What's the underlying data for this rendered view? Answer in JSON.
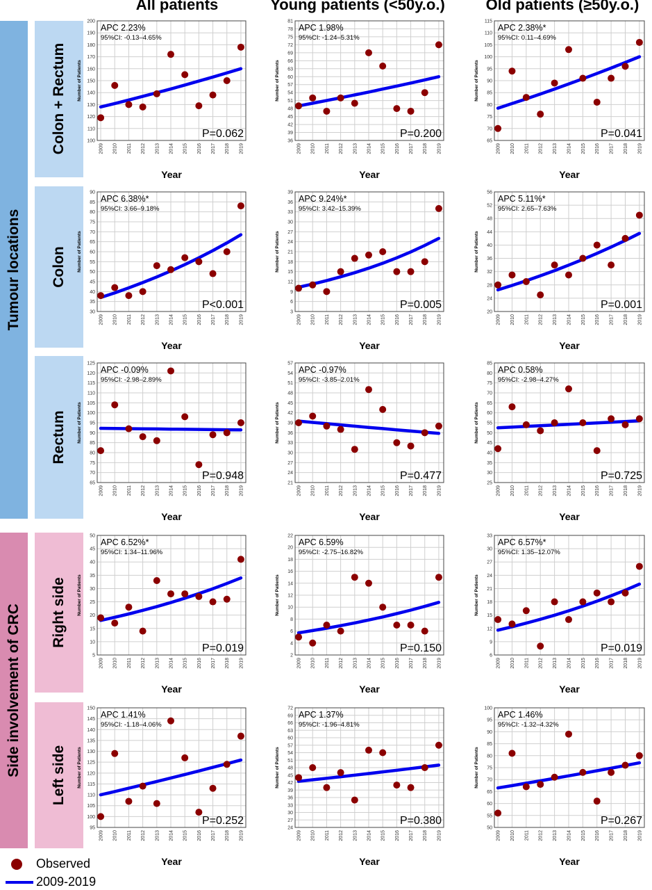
{
  "column_headers": [
    "All patients",
    "Young patients (<50y.o.)",
    "Old patients (≥50y.o.)"
  ],
  "group_labels": [
    "Tumour locations",
    "Side involvement of CRC"
  ],
  "row_labels": [
    "Colon + Rectum",
    "Colon",
    "Rectum",
    "Right side",
    "Left side"
  ],
  "axis_title_y": "Number of Patients",
  "axis_title_x": "Year",
  "legend": {
    "observed": "Observed",
    "fit": "2009-2019"
  },
  "colors": {
    "observed": "#8b0000",
    "fit": "#0000ee",
    "band_tumour": "#7fb3e0",
    "row_tumour": "#bcd8f2",
    "band_side": "#d98bb0",
    "row_side": "#efbcd4"
  },
  "chart_data": [
    {
      "type": "scatter",
      "row": "Colon + Rectum",
      "column": "All patients",
      "title": "",
      "xlabel": "Year",
      "ylabel": "Number of Patients",
      "x": [
        2009,
        2010,
        2011,
        2012,
        2013,
        2014,
        2015,
        2016,
        2017,
        2018,
        2019
      ],
      "observed": [
        119,
        146,
        130,
        128,
        139,
        172,
        155,
        129,
        138,
        150,
        178
      ],
      "fit": {
        "start": 128,
        "end": 160
      },
      "ylim": [
        100,
        200
      ],
      "yticks": [
        100,
        110,
        120,
        130,
        140,
        150,
        160,
        170,
        180,
        190,
        200
      ],
      "apc": "APC 2.23%",
      "ci": "95%CI: -0.13–4.65%",
      "p": "P=0.062"
    },
    {
      "type": "scatter",
      "row": "Colon + Rectum",
      "column": "Young patients (<50y.o.)",
      "title": "",
      "xlabel": "Year",
      "ylabel": "Number of Patients",
      "x": [
        2009,
        2010,
        2011,
        2012,
        2013,
        2014,
        2015,
        2016,
        2017,
        2018,
        2019
      ],
      "observed": [
        49,
        52,
        47,
        52,
        50,
        69,
        64,
        48,
        47,
        54,
        72
      ],
      "fit": {
        "start": 49,
        "end": 60
      },
      "ylim": [
        36,
        81
      ],
      "yticks": [
        36,
        39,
        42,
        45,
        48,
        51,
        54,
        57,
        60,
        63,
        66,
        69,
        72,
        75,
        78,
        81
      ],
      "apc": "APC 1.98%",
      "ci": "95%CI: -1.24–5.31%",
      "p": "P=0.200"
    },
    {
      "type": "scatter",
      "row": "Colon + Rectum",
      "column": "Old patients (≥50y.o.)",
      "title": "",
      "xlabel": "Year",
      "ylabel": "Number of Patients",
      "x": [
        2009,
        2010,
        2011,
        2012,
        2013,
        2014,
        2015,
        2016,
        2017,
        2018,
        2019
      ],
      "observed": [
        70,
        94,
        83,
        76,
        89,
        103,
        91,
        81,
        91,
        96,
        106
      ],
      "fit": {
        "start": 78.5,
        "end": 100
      },
      "ylim": [
        65,
        115
      ],
      "yticks": [
        65,
        70,
        75,
        80,
        85,
        90,
        95,
        100,
        105,
        110,
        115
      ],
      "apc": "APC 2.38%*",
      "ci": "95%CI: 0.11–4.69%",
      "p": "P=0.041"
    },
    {
      "type": "scatter",
      "row": "Colon",
      "column": "All patients",
      "title": "",
      "xlabel": "Year",
      "ylabel": "Number of Patients",
      "x": [
        2009,
        2010,
        2011,
        2012,
        2013,
        2014,
        2015,
        2016,
        2017,
        2018,
        2019
      ],
      "observed": [
        38,
        42,
        38,
        40,
        53,
        51,
        57,
        55,
        49,
        60,
        83
      ],
      "fit": {
        "start": 37,
        "end": 68.5
      },
      "ylim": [
        30,
        90
      ],
      "yticks": [
        30,
        35,
        40,
        45,
        50,
        55,
        60,
        65,
        70,
        75,
        80,
        85,
        90
      ],
      "apc": "APC 6.38%*",
      "ci": "95%CI: 3.66–9.18%",
      "p": "P<0.001"
    },
    {
      "type": "scatter",
      "row": "Colon",
      "column": "Young patients (<50y.o.)",
      "title": "",
      "xlabel": "Year",
      "ylabel": "Number of Patients",
      "x": [
        2009,
        2010,
        2011,
        2012,
        2013,
        2014,
        2015,
        2016,
        2017,
        2018,
        2019
      ],
      "observed": [
        10,
        11,
        9,
        15,
        19,
        20,
        21,
        15,
        15,
        18,
        34
      ],
      "fit": {
        "start": 10.3,
        "end": 25
      },
      "ylim": [
        3,
        39
      ],
      "yticks": [
        3,
        6,
        9,
        12,
        15,
        18,
        21,
        24,
        27,
        30,
        33,
        36,
        39
      ],
      "apc": "APC 9.24%*",
      "ci": "95%CI: 3.42–15.39%",
      "p": "P=0.005"
    },
    {
      "type": "scatter",
      "row": "Colon",
      "column": "Old patients (≥50y.o.)",
      "title": "",
      "xlabel": "Year",
      "ylabel": "Number of Patients",
      "x": [
        2009,
        2010,
        2011,
        2012,
        2013,
        2014,
        2015,
        2016,
        2017,
        2018,
        2019
      ],
      "observed": [
        28,
        31,
        29,
        25,
        34,
        31,
        36,
        40,
        34,
        42,
        49
      ],
      "fit": {
        "start": 26.5,
        "end": 43.5
      },
      "ylim": [
        20,
        56
      ],
      "yticks": [
        20,
        24,
        28,
        32,
        36,
        40,
        44,
        48,
        52,
        56
      ],
      "apc": "APC 5.11%*",
      "ci": "95%CI: 2.65–7.63%",
      "p": "P=0.001"
    },
    {
      "type": "scatter",
      "row": "Rectum",
      "column": "All patients",
      "title": "",
      "xlabel": "Year",
      "ylabel": "Number of Patients",
      "x": [
        2009,
        2010,
        2011,
        2012,
        2013,
        2014,
        2015,
        2016,
        2017,
        2018,
        2019
      ],
      "observed": [
        81,
        104,
        92,
        88,
        86,
        121,
        98,
        74,
        89,
        90,
        95
      ],
      "fit": {
        "start": 92.2,
        "end": 91.4
      },
      "ylim": [
        65,
        125
      ],
      "yticks": [
        65,
        70,
        75,
        80,
        85,
        90,
        95,
        100,
        105,
        110,
        115,
        120,
        125
      ],
      "apc": "APC -0.09%",
      "ci": "95%CI: -2.98–2.89%",
      "p": "P=0.948"
    },
    {
      "type": "scatter",
      "row": "Rectum",
      "column": "Young patients (<50y.o.)",
      "title": "",
      "xlabel": "Year",
      "ylabel": "Number of Patients",
      "x": [
        2009,
        2010,
        2011,
        2012,
        2013,
        2014,
        2015,
        2016,
        2017,
        2018,
        2019
      ],
      "observed": [
        39,
        41,
        38,
        37,
        31,
        49,
        43,
        33,
        32,
        36,
        38
      ],
      "fit": {
        "start": 39.5,
        "end": 35.8
      },
      "ylim": [
        21,
        57
      ],
      "yticks": [
        21,
        24,
        27,
        30,
        33,
        36,
        39,
        42,
        45,
        48,
        51,
        54,
        57
      ],
      "apc": "APC -0.97%",
      "ci": "95%CI: -3.85–2.01%",
      "p": "P=0.477"
    },
    {
      "type": "scatter",
      "row": "Rectum",
      "column": "Old patients (≥50y.o.)",
      "title": "",
      "xlabel": "Year",
      "ylabel": "Number of Patients",
      "x": [
        2009,
        2010,
        2011,
        2012,
        2013,
        2014,
        2015,
        2016,
        2017,
        2018,
        2019
      ],
      "observed": [
        42,
        63,
        54,
        51,
        55,
        72,
        55,
        41,
        57,
        54,
        57
      ],
      "fit": {
        "start": 52.5,
        "end": 56
      },
      "ylim": [
        25,
        85
      ],
      "yticks": [
        25,
        30,
        35,
        40,
        45,
        50,
        55,
        60,
        65,
        70,
        75,
        80,
        85
      ],
      "apc": "APC 0.58%",
      "ci": "95%CI: -2.98–4.27%",
      "p": "P=0.725"
    },
    {
      "type": "scatter",
      "row": "Right side",
      "column": "All patients",
      "title": "",
      "xlabel": "Year",
      "ylabel": "Number of Patients",
      "x": [
        2009,
        2010,
        2011,
        2012,
        2013,
        2014,
        2015,
        2016,
        2017,
        2018,
        2019
      ],
      "observed": [
        19,
        17,
        23,
        14,
        33,
        28,
        28,
        27,
        25,
        26,
        41
      ],
      "fit": {
        "start": 18,
        "end": 34
      },
      "ylim": [
        5,
        50
      ],
      "yticks": [
        5,
        10,
        15,
        20,
        25,
        30,
        35,
        40,
        45,
        50
      ],
      "apc": "APC 6.52%*",
      "ci": "95%CI: 1.34–11.96%",
      "p": "P=0.019"
    },
    {
      "type": "scatter",
      "row": "Right side",
      "column": "Young patients (<50y.o.)",
      "title": "",
      "xlabel": "Year",
      "ylabel": "Number of Patients",
      "x": [
        2009,
        2010,
        2011,
        2012,
        2013,
        2014,
        2015,
        2016,
        2017,
        2018,
        2019
      ],
      "observed": [
        5,
        4,
        7,
        6,
        15,
        14,
        10,
        7,
        7,
        6,
        15
      ],
      "fit": {
        "start": 5.7,
        "end": 10.8
      },
      "ylim": [
        2,
        22
      ],
      "yticks": [
        2,
        4,
        6,
        8,
        10,
        12,
        14,
        16,
        18,
        20,
        22
      ],
      "apc": "APC 6.59%",
      "ci": "95%CI: -2.75–16.82%",
      "p": "P=0.150"
    },
    {
      "type": "scatter",
      "row": "Right side",
      "column": "Old patients (≥50y.o.)",
      "title": "",
      "xlabel": "Year",
      "ylabel": "Number of Patients",
      "x": [
        2009,
        2010,
        2011,
        2012,
        2013,
        2014,
        2015,
        2016,
        2017,
        2018,
        2019
      ],
      "observed": [
        14,
        13,
        16,
        8,
        18,
        14,
        18,
        20,
        18,
        20,
        26
      ],
      "fit": {
        "start": 11.6,
        "end": 22
      },
      "ylim": [
        6,
        33
      ],
      "yticks": [
        6,
        9,
        12,
        15,
        18,
        21,
        24,
        27,
        30,
        33
      ],
      "apc": "APC 6.57%*",
      "ci": "95%CI: 1.35–12.07%",
      "p": "P=0.019"
    },
    {
      "type": "scatter",
      "row": "Left side",
      "column": "All patients",
      "title": "",
      "xlabel": "Year",
      "ylabel": "Number of Patients",
      "x": [
        2009,
        2010,
        2011,
        2012,
        2013,
        2014,
        2015,
        2016,
        2017,
        2018,
        2019
      ],
      "observed": [
        100,
        129,
        107,
        114,
        106,
        144,
        127,
        102,
        113,
        124,
        137
      ],
      "fit": {
        "start": 110,
        "end": 126
      },
      "ylim": [
        95,
        150
      ],
      "yticks": [
        95,
        100,
        105,
        110,
        115,
        120,
        125,
        130,
        135,
        140,
        145,
        150
      ],
      "apc": "APC 1.41%",
      "ci": "95%CI: -1.18–4.06%",
      "p": "P=0.252"
    },
    {
      "type": "scatter",
      "row": "Left side",
      "column": "Young patients (<50y.o.)",
      "title": "",
      "xlabel": "Year",
      "ylabel": "Number of Patients",
      "x": [
        2009,
        2010,
        2011,
        2012,
        2013,
        2014,
        2015,
        2016,
        2017,
        2018,
        2019
      ],
      "observed": [
        44,
        48,
        40,
        46,
        35,
        55,
        54,
        41,
        40,
        48,
        57
      ],
      "fit": {
        "start": 42.5,
        "end": 49
      },
      "ylim": [
        24,
        72
      ],
      "yticks": [
        24,
        27,
        30,
        33,
        36,
        39,
        42,
        45,
        48,
        51,
        54,
        57,
        60,
        63,
        66,
        69,
        72
      ],
      "apc": "APC 1.37%",
      "ci": "95%CI: -1.96–4.81%",
      "p": "P=0.380"
    },
    {
      "type": "scatter",
      "row": "Left side",
      "column": "Old patients (≥50y.o.)",
      "title": "",
      "xlabel": "Year",
      "ylabel": "Number of Patients",
      "x": [
        2009,
        2010,
        2011,
        2012,
        2013,
        2014,
        2015,
        2016,
        2017,
        2018,
        2019
      ],
      "observed": [
        56,
        81,
        67,
        68,
        71,
        89,
        73,
        61,
        73,
        76,
        80
      ],
      "fit": {
        "start": 66.5,
        "end": 77
      },
      "ylim": [
        50,
        100
      ],
      "yticks": [
        50,
        55,
        60,
        65,
        70,
        75,
        80,
        85,
        90,
        95,
        100
      ],
      "apc": "APC 1.46%",
      "ci": "95%CI: -1.32–4.32%",
      "p": "P=0.267"
    }
  ]
}
